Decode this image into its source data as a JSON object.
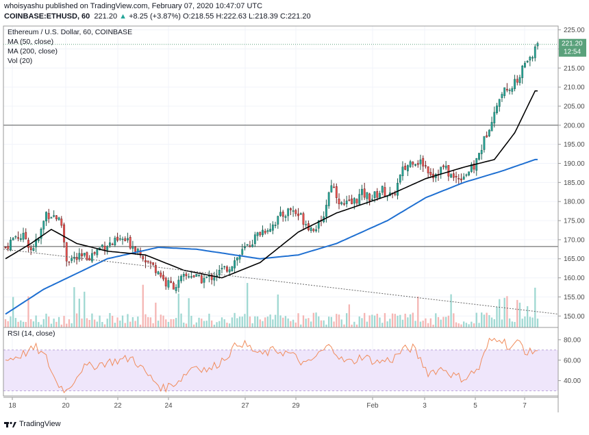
{
  "header": {
    "published_line": "whoisyashu published on TradingView.com, February 07, 2020 10:47:07 UTC",
    "symbol": "COINBASE:ETHUSD, 60",
    "last": "221.20",
    "change_arrow": "▲",
    "change": "+8.25 (+3.87%)",
    "open": "O:218.55",
    "high": "H:222.63",
    "low": "L:218.39",
    "close": "C:221.20"
  },
  "footer": {
    "brand": "TradingView",
    "logo_icon": "tradingview-logo-icon"
  },
  "colors": {
    "up": "#26a69a",
    "down": "#ef5350",
    "ma50": "#000000",
    "ma200": "#1e6fd1",
    "rsi": "#f08b5a",
    "rsi_band": "#efe6fb",
    "price_tag": "#5aa17b"
  },
  "chart_data": [
    {
      "type": "candlestick",
      "title": "Ethereum / U.S. Dollar, 60, COINBASE",
      "legend": [
        "MA (50, close)",
        "MA (200, close)",
        "Vol (20)"
      ],
      "price_label": "221.20",
      "countdown": "12:54",
      "ylim": [
        147,
        226
      ],
      "yticks": [
        "225.00",
        "220.00",
        "215.00",
        "210.00",
        "205.00",
        "200.00",
        "195.00",
        "190.00",
        "185.00",
        "180.00",
        "175.00",
        "170.00",
        "165.00",
        "160.00",
        "155.00",
        "150.00"
      ],
      "xticks": [
        "18",
        "20",
        "22",
        "24",
        "27",
        "29",
        "Feb",
        "3",
        "5",
        "7"
      ],
      "horizontal_lines": [
        200.0,
        168.2
      ],
      "trendline": {
        "from": 167.5,
        "to": 150.5
      },
      "close_anchors": [
        [
          0,
          168
        ],
        [
          4,
          171
        ],
        [
          8,
          170.5
        ],
        [
          10,
          167.5
        ],
        [
          13,
          170
        ],
        [
          16,
          177
        ],
        [
          20,
          176
        ],
        [
          22,
          174
        ],
        [
          24,
          165
        ],
        [
          28,
          165
        ],
        [
          31,
          165.5
        ],
        [
          34,
          166
        ],
        [
          38,
          168.5
        ],
        [
          42,
          169
        ],
        [
          46,
          170
        ],
        [
          50,
          168.5
        ],
        [
          53,
          167
        ],
        [
          56,
          164
        ],
        [
          60,
          162
        ],
        [
          63,
          158.5
        ],
        [
          67,
          158
        ],
        [
          70,
          160
        ],
        [
          73,
          161
        ],
        [
          76,
          159.5
        ],
        [
          80,
          160
        ],
        [
          84,
          161.5
        ],
        [
          88,
          163
        ],
        [
          92,
          166
        ],
        [
          96,
          169
        ],
        [
          100,
          172
        ],
        [
          104,
          173.5
        ],
        [
          108,
          176
        ],
        [
          112,
          178
        ],
        [
          116,
          176
        ],
        [
          120,
          173
        ],
        [
          124,
          174
        ],
        [
          128,
          185
        ],
        [
          132,
          179
        ],
        [
          136,
          179.5
        ],
        [
          140,
          182
        ],
        [
          144,
          181
        ],
        [
          148,
          183
        ],
        [
          152,
          181
        ],
        [
          156,
          188
        ],
        [
          160,
          191
        ],
        [
          164,
          190
        ],
        [
          168,
          187
        ],
        [
          172,
          189
        ],
        [
          176,
          186
        ],
        [
          180,
          187
        ],
        [
          184,
          189
        ],
        [
          188,
          196
        ],
        [
          192,
          204
        ],
        [
          196,
          210
        ],
        [
          200,
          211
        ],
        [
          204,
          216
        ],
        [
          207,
          218
        ],
        [
          208,
          221.2
        ]
      ],
      "ma200_anchors": [
        [
          0,
          150.5
        ],
        [
          15,
          157
        ],
        [
          40,
          165
        ],
        [
          60,
          168
        ],
        [
          75,
          167.5
        ],
        [
          100,
          165
        ],
        [
          115,
          166
        ],
        [
          130,
          169
        ],
        [
          150,
          175
        ],
        [
          165,
          181
        ],
        [
          180,
          185
        ],
        [
          195,
          188
        ],
        [
          208,
          191
        ]
      ],
      "ma50_anchors": [
        [
          0,
          165
        ],
        [
          10,
          169
        ],
        [
          18,
          172.7
        ],
        [
          28,
          169
        ],
        [
          40,
          167
        ],
        [
          55,
          166
        ],
        [
          70,
          162
        ],
        [
          85,
          160
        ],
        [
          100,
          164
        ],
        [
          115,
          172
        ],
        [
          130,
          177
        ],
        [
          150,
          181.5
        ],
        [
          165,
          186
        ],
        [
          180,
          189
        ],
        [
          192,
          191
        ],
        [
          200,
          198
        ],
        [
          208,
          209
        ]
      ],
      "volume_note": "Vol (20) histogram shown as bars along the bottom of the price pane"
    },
    {
      "type": "line",
      "title": "RSI (14, close)",
      "ylim": [
        25,
        92
      ],
      "yticks": [
        "80.00",
        "60.00",
        "40.00"
      ],
      "band": [
        30,
        70
      ],
      "anchors": [
        [
          0,
          60
        ],
        [
          6,
          65
        ],
        [
          12,
          72
        ],
        [
          16,
          62
        ],
        [
          20,
          38
        ],
        [
          24,
          30
        ],
        [
          30,
          52
        ],
        [
          40,
          58
        ],
        [
          50,
          62
        ],
        [
          56,
          45
        ],
        [
          62,
          32
        ],
        [
          68,
          40
        ],
        [
          74,
          55
        ],
        [
          80,
          50
        ],
        [
          86,
          62
        ],
        [
          92,
          78
        ],
        [
          96,
          72
        ],
        [
          100,
          65
        ],
        [
          106,
          70
        ],
        [
          112,
          66
        ],
        [
          118,
          55
        ],
        [
          124,
          68
        ],
        [
          128,
          75
        ],
        [
          132,
          60
        ],
        [
          136,
          58
        ],
        [
          140,
          64
        ],
        [
          146,
          58
        ],
        [
          152,
          61
        ],
        [
          156,
          70
        ],
        [
          160,
          72
        ],
        [
          166,
          48
        ],
        [
          172,
          52
        ],
        [
          176,
          45
        ],
        [
          180,
          42
        ],
        [
          186,
          52
        ],
        [
          190,
          78
        ],
        [
          194,
          83
        ],
        [
          198,
          72
        ],
        [
          202,
          78
        ],
        [
          205,
          66
        ],
        [
          208,
          70
        ]
      ]
    }
  ]
}
